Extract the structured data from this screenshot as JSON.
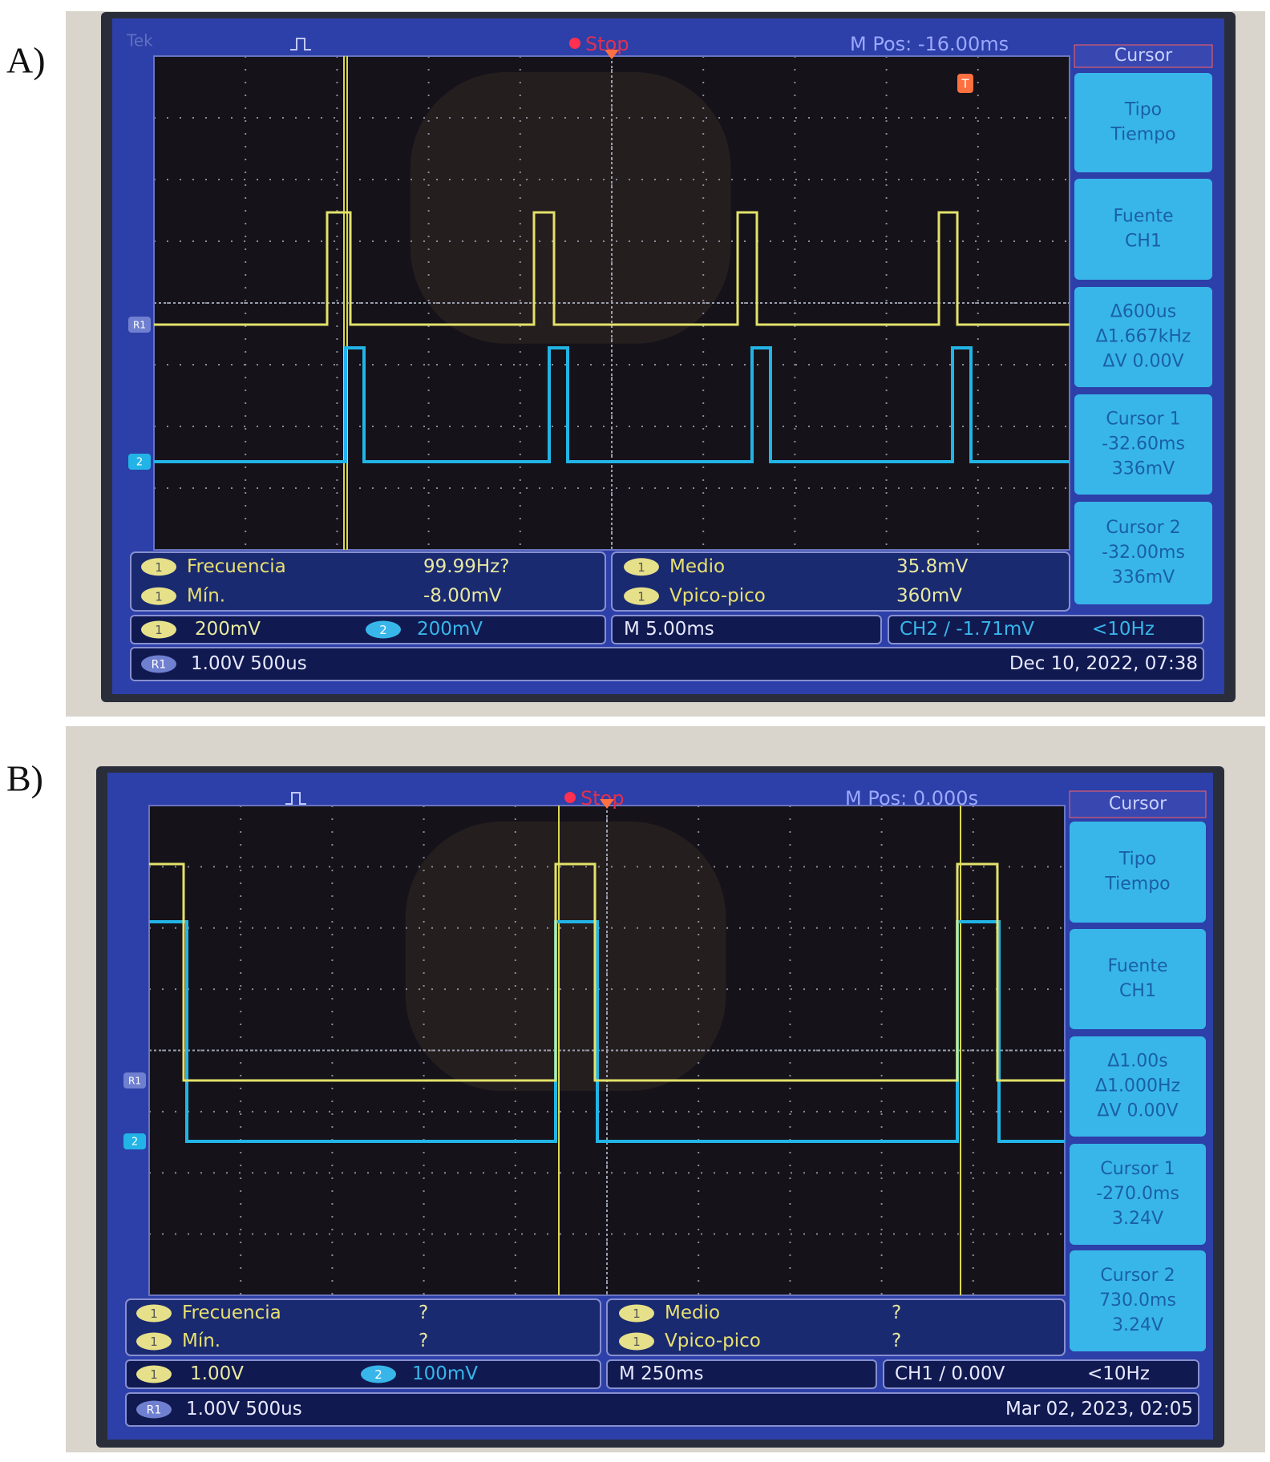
{
  "panels": [
    {
      "label": "A)",
      "header": {
        "brand": "Tek",
        "status": "Stop",
        "position": "M Pos: -16.00ms",
        "trigger_marker": "T"
      },
      "markers": [
        "R1",
        "2"
      ],
      "menu": {
        "title": "Cursor",
        "items": [
          [
            "Tipo",
            "Tiempo"
          ],
          [
            "Fuente",
            "CH1"
          ],
          [
            "Δ600us",
            "Δ1.667kHz",
            "ΔV 0.00V"
          ],
          [
            "Cursor 1",
            "-32.60ms",
            "336mV"
          ],
          [
            "Cursor 2",
            "-32.00ms",
            "336mV"
          ]
        ]
      },
      "measurements": [
        {
          "channel": "1",
          "name": "Frecuencia",
          "value": "99.99Hz?"
        },
        {
          "channel": "1",
          "name": "Mín.",
          "value": "-8.00mV"
        },
        {
          "channel": "1",
          "name": "Medio",
          "value": "35.8mV"
        },
        {
          "channel": "1",
          "name": "Vpico-pico",
          "value": "360mV"
        }
      ],
      "channels": [
        {
          "channel": "1",
          "scale": "200mV"
        },
        {
          "channel": "2",
          "scale": "200mV"
        }
      ],
      "timebase": "M 5.00ms",
      "trigger": "CH2 ∕ -1.71mV",
      "trigger_freq": "<10Hz",
      "reference": {
        "channel": "R1",
        "setting": "1.00V 500us"
      },
      "timestamp": "Dec 10, 2022, 07:38"
    },
    {
      "label": "B)",
      "header": {
        "status": "Stop",
        "position": "M Pos: 0.000s"
      },
      "markers": [
        "R1",
        "2"
      ],
      "menu": {
        "title": "Cursor",
        "items": [
          [
            "Tipo",
            "Tiempo"
          ],
          [
            "Fuente",
            "CH1"
          ],
          [
            "Δ1.00s",
            "Δ1.000Hz",
            "ΔV 0.00V"
          ],
          [
            "Cursor 1",
            "-270.0ms",
            "3.24V"
          ],
          [
            "Cursor 2",
            "730.0ms",
            "3.24V"
          ]
        ]
      },
      "measurements": [
        {
          "channel": "1",
          "name": "Frecuencia",
          "value": "?"
        },
        {
          "channel": "1",
          "name": "Mín.",
          "value": "?"
        },
        {
          "channel": "1",
          "name": "Medio",
          "value": "?"
        },
        {
          "channel": "1",
          "name": "Vpico-pico",
          "value": "?"
        }
      ],
      "channels": [
        {
          "channel": "1",
          "scale": "1.00V"
        },
        {
          "channel": "2",
          "scale": "100mV"
        }
      ],
      "timebase": "M 250ms",
      "trigger": "CH1 ∕ 0.00V",
      "trigger_freq": "<10Hz",
      "reference": {
        "channel": "R1",
        "setting": "1.00V 500us"
      },
      "timestamp": "Mar 02, 2023, 02:05"
    }
  ]
}
